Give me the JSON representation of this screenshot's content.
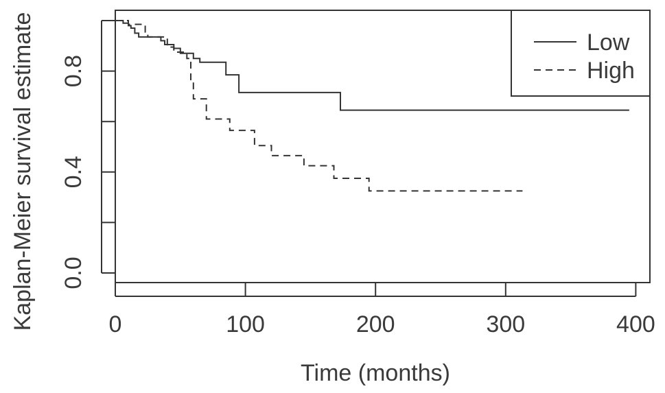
{
  "chart_data": {
    "type": "line",
    "subtype": "kaplan-meier step curve",
    "title": "",
    "xlabel": "Time (months)",
    "ylabel": "Kaplan-Meier survival estimate",
    "xlim": [
      0,
      400
    ],
    "ylim": [
      0,
      1
    ],
    "x_ticks": [
      0,
      100,
      200,
      300,
      400
    ],
    "x_tick_labels": [
      "0",
      "100",
      "200",
      "300",
      "400"
    ],
    "y_ticks": [
      0.0,
      0.2,
      0.4,
      0.6,
      0.8,
      1.0
    ],
    "y_tick_labels": [
      "0.0",
      "",
      "0.4",
      "",
      "0.8",
      ""
    ],
    "grid": false,
    "legend_position": "top-right",
    "series": [
      {
        "name": "Low",
        "line_style": "solid",
        "color": "#333333",
        "x": [
          0,
          6,
          10,
          12,
          15,
          18,
          35,
          38,
          45,
          50,
          60,
          65,
          85,
          95,
          173,
          395
        ],
        "y": [
          1.0,
          0.99,
          0.98,
          0.97,
          0.95,
          0.935,
          0.92,
          0.905,
          0.89,
          0.87,
          0.85,
          0.835,
          0.785,
          0.715,
          0.645,
          0.645
        ]
      },
      {
        "name": "High",
        "line_style": "dashed",
        "color": "#333333",
        "x": [
          0,
          10,
          23,
          25,
          40,
          45,
          55,
          58,
          60,
          70,
          88,
          107,
          120,
          145,
          168,
          195,
          313
        ],
        "y": [
          1.0,
          0.985,
          0.955,
          0.935,
          0.895,
          0.875,
          0.85,
          0.76,
          0.69,
          0.61,
          0.565,
          0.505,
          0.465,
          0.425,
          0.375,
          0.325,
          0.325
        ]
      }
    ]
  }
}
